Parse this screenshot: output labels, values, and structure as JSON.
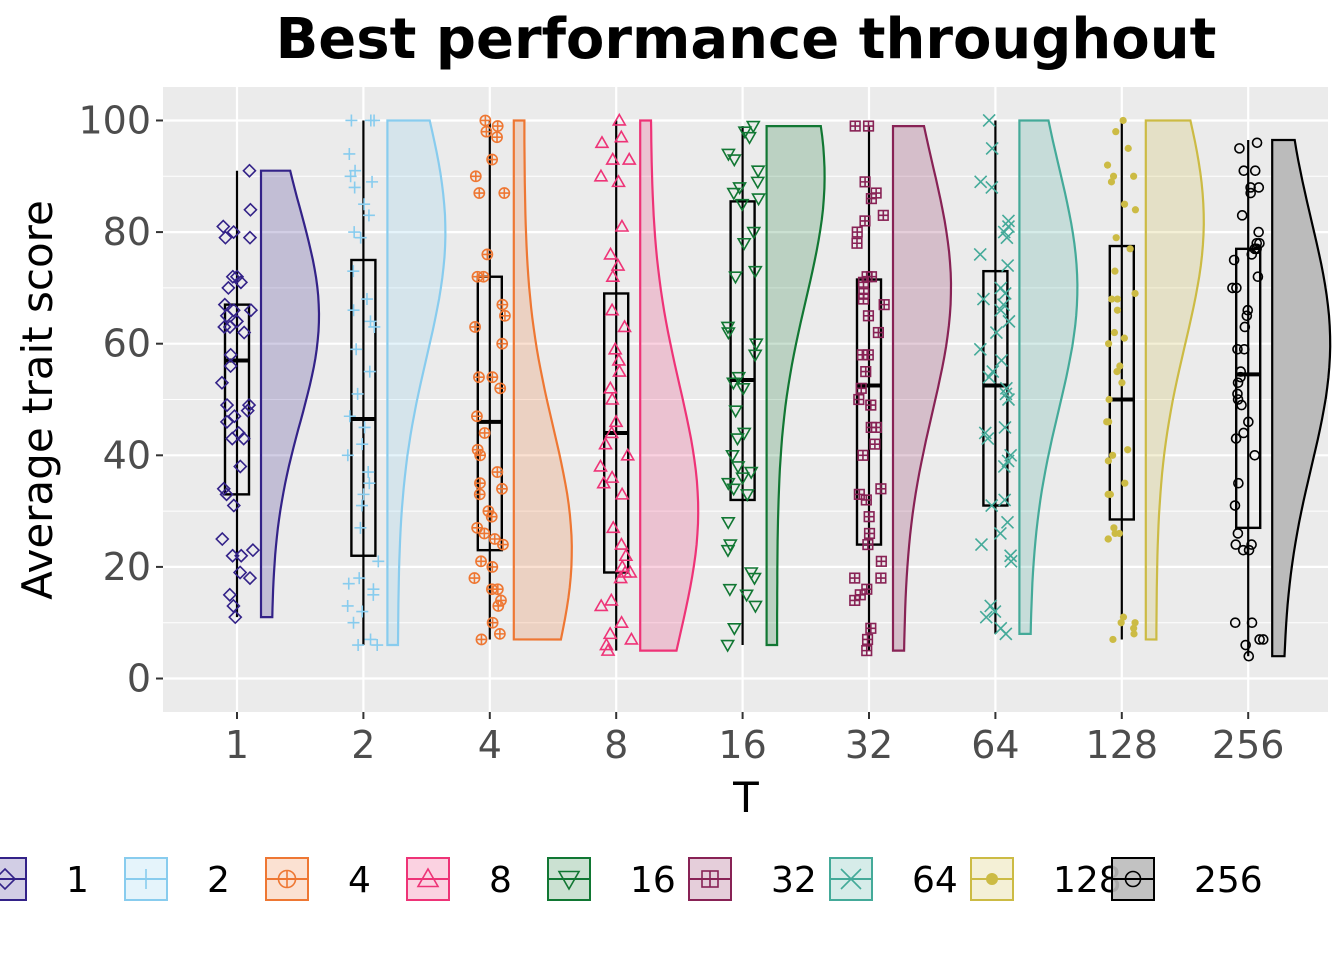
{
  "chart_data": {
    "type": "raincloud",
    "title": "Best performance throughout",
    "xlabel": "T",
    "ylabel": "Average trait score",
    "ylim": [
      -6,
      106
    ],
    "yticks": [
      0,
      20,
      40,
      60,
      80,
      100
    ],
    "grid": true,
    "legend_position": "bottom",
    "categories": [
      "1",
      "2",
      "4",
      "8",
      "16",
      "32",
      "64",
      "128",
      "256"
    ],
    "series": [
      {
        "name": "1",
        "color": "#332288",
        "marker": "diamond",
        "box": {
          "q1": 33,
          "median": 57,
          "q3": 67,
          "min": 11,
          "max": 91
        },
        "density_range": [
          11,
          91
        ],
        "density_peak": 65,
        "points": [
          91,
          84,
          81,
          80,
          79,
          79,
          72,
          72,
          71,
          70,
          67,
          66,
          66,
          65,
          64,
          63,
          63,
          62,
          58,
          56,
          53,
          49,
          49,
          48,
          47,
          46,
          44,
          43,
          43,
          38,
          34,
          33,
          31,
          25,
          23,
          22,
          22,
          19,
          18,
          15,
          13,
          11
        ]
      },
      {
        "name": "2",
        "color": "#88CCEE",
        "marker": "plus",
        "box": {
          "q1": 22,
          "median": 46.5,
          "q3": 75,
          "min": 6,
          "max": 100
        },
        "density_range": [
          6,
          100
        ],
        "density_peak": 80,
        "points": [
          100,
          100,
          100,
          94,
          91,
          90,
          89,
          88,
          85,
          83,
          80,
          79,
          73,
          68,
          66,
          64,
          63,
          59,
          55,
          51,
          47,
          45,
          42,
          40,
          37,
          35,
          33,
          31,
          27,
          21,
          18,
          17,
          16,
          15,
          13,
          12,
          10,
          7,
          6,
          6
        ]
      },
      {
        "name": "4",
        "color": "#EE7733",
        "marker": "circle-plus",
        "box": {
          "q1": 23,
          "median": 46,
          "q3": 72,
          "min": 7,
          "max": 100
        },
        "density_range": [
          7,
          100
        ],
        "density_peak": 23,
        "points": [
          100,
          99,
          98,
          97,
          93,
          90,
          87,
          87,
          76,
          72,
          72,
          67,
          65,
          63,
          60,
          54,
          54,
          52,
          47,
          44,
          41,
          40,
          37,
          35,
          34,
          33,
          30,
          29,
          27,
          26,
          25,
          24,
          21,
          20,
          18,
          16,
          16,
          14,
          13,
          10,
          8,
          7
        ]
      },
      {
        "name": "8",
        "color": "#EE3377",
        "marker": "triangle-up",
        "box": {
          "q1": 19,
          "median": 44,
          "q3": 69,
          "min": 5,
          "max": 100
        },
        "density_range": [
          5,
          100
        ],
        "density_peak": 30,
        "points": [
          100,
          97,
          96,
          93,
          93,
          90,
          89,
          81,
          76,
          74,
          72,
          66,
          63,
          59,
          57,
          55,
          52,
          50,
          46,
          44,
          42,
          40,
          38,
          36,
          35,
          33,
          27,
          24,
          22,
          20,
          19,
          19,
          18,
          14,
          13,
          10,
          8,
          7,
          6,
          5
        ]
      },
      {
        "name": "16",
        "color": "#117733",
        "marker": "triangle-down",
        "box": {
          "q1": 32,
          "median": 53.5,
          "q3": 85.5,
          "min": 6,
          "max": 99
        },
        "density_range": [
          6,
          99
        ],
        "density_peak": 90,
        "points": [
          99,
          98,
          97,
          94,
          93,
          91,
          89,
          88,
          87,
          86,
          85,
          80,
          78,
          73,
          72,
          63,
          62,
          60,
          58,
          54,
          53,
          52,
          48,
          44,
          43,
          40,
          38,
          37,
          36,
          35,
          34,
          33,
          28,
          24,
          23,
          19,
          18,
          16,
          15,
          13,
          9,
          6
        ]
      },
      {
        "name": "32",
        "color": "#882255",
        "marker": "square-plus",
        "box": {
          "q1": 24,
          "median": 52.5,
          "q3": 71.5,
          "min": 5,
          "max": 99
        },
        "density_range": [
          5,
          99
        ],
        "density_peak": 70,
        "points": [
          99,
          99,
          89,
          87,
          86,
          83,
          82,
          80,
          78,
          72,
          72,
          71,
          69,
          68,
          67,
          65,
          62,
          58,
          58,
          55,
          52,
          50,
          49,
          45,
          45,
          42,
          40,
          34,
          33,
          32,
          29,
          26,
          24,
          21,
          18,
          18,
          16,
          15,
          14,
          9,
          7,
          5
        ]
      },
      {
        "name": "64",
        "color": "#44AA99",
        "marker": "cross",
        "box": {
          "q1": 31,
          "median": 52.5,
          "q3": 73,
          "min": 8,
          "max": 100
        },
        "density_range": [
          8,
          100
        ],
        "density_peak": 70,
        "points": [
          100,
          95,
          89,
          88,
          82,
          81,
          80,
          79,
          76,
          74,
          70,
          69,
          68,
          67,
          66,
          64,
          62,
          59,
          57,
          55,
          54,
          52,
          51,
          50,
          45,
          44,
          43,
          40,
          39,
          38,
          32,
          31,
          28,
          26,
          24,
          22,
          21,
          13,
          12,
          11,
          9,
          8
        ]
      },
      {
        "name": "128",
        "color": "#CCBB44",
        "marker": "dot",
        "box": {
          "q1": 28.5,
          "median": 50,
          "q3": 77.5,
          "min": 7,
          "max": 100
        },
        "density_range": [
          7,
          100
        ],
        "density_peak": 82,
        "points": [
          100,
          98,
          95,
          92,
          90,
          90,
          89,
          85,
          84,
          79,
          77,
          73,
          69,
          68,
          68,
          66,
          62,
          61,
          60,
          56,
          55,
          53,
          50,
          46,
          46,
          41,
          40,
          39,
          35,
          33,
          33,
          27,
          26,
          26,
          25,
          25,
          11,
          10,
          10,
          9,
          8,
          7
        ]
      },
      {
        "name": "256",
        "color": "#000000",
        "fill": "#bbbbbb",
        "marker": "circle-open",
        "box": {
          "q1": 27,
          "median": 54.5,
          "q3": 77,
          "min": 4,
          "max": 96.5
        },
        "density_range": [
          4,
          96.5
        ],
        "density_peak": 60,
        "points": [
          96,
          95,
          91,
          91,
          88,
          88,
          87,
          83,
          80,
          78,
          78,
          77,
          77,
          76,
          75,
          72,
          70,
          70,
          66,
          65,
          63,
          59,
          59,
          55,
          54,
          53,
          51,
          50,
          49,
          46,
          44,
          43,
          40,
          35,
          31,
          26,
          24,
          24,
          23,
          23,
          10,
          10,
          7,
          7,
          6,
          4
        ]
      }
    ]
  },
  "legend": {
    "items": [
      {
        "label": "1",
        "color": "#332288",
        "marker": "diamond"
      },
      {
        "label": "2",
        "color": "#88CCEE",
        "marker": "plus"
      },
      {
        "label": "4",
        "color": "#EE7733",
        "marker": "circle-plus"
      },
      {
        "label": "8",
        "color": "#EE3377",
        "marker": "triangle-up"
      },
      {
        "label": "16",
        "color": "#117733",
        "marker": "triangle-down"
      },
      {
        "label": "32",
        "color": "#882255",
        "marker": "square-plus"
      },
      {
        "label": "64",
        "color": "#44AA99",
        "marker": "cross"
      },
      {
        "label": "128",
        "color": "#CCBB44",
        "marker": "dot"
      },
      {
        "label": "256",
        "color": "#000000",
        "marker": "circle-open"
      }
    ]
  },
  "colors": {
    "panel_background": "#EBEBEB",
    "grid": "#FFFFFF"
  }
}
